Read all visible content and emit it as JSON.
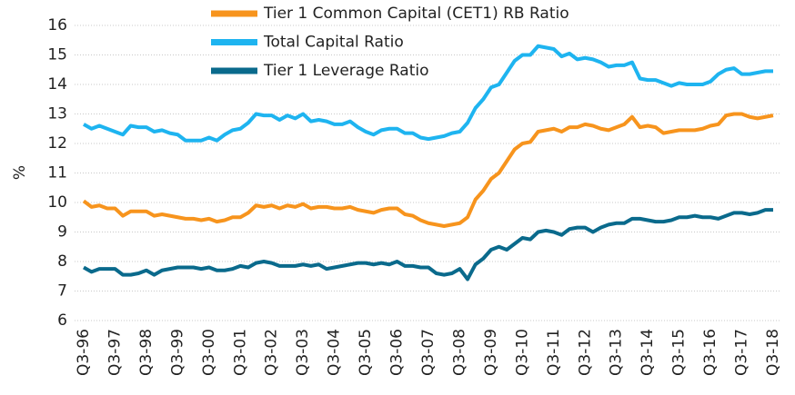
{
  "chart_data": {
    "type": "line",
    "ylabel": "%",
    "categories": [
      "Q3-96",
      null,
      null,
      null,
      "Q3-97",
      null,
      null,
      null,
      "Q3-98",
      null,
      null,
      null,
      "Q3-99",
      null,
      null,
      null,
      "Q3-00",
      null,
      null,
      null,
      "Q3-01",
      null,
      null,
      null,
      "Q3-02",
      null,
      null,
      null,
      "Q3-03",
      null,
      null,
      null,
      "Q3-04",
      null,
      null,
      null,
      "Q3-05",
      null,
      null,
      null,
      "Q3-06",
      null,
      null,
      null,
      "Q3-07",
      null,
      null,
      null,
      "Q3-08",
      null,
      null,
      null,
      "Q3-09",
      null,
      null,
      null,
      "Q3-10",
      null,
      null,
      null,
      "Q3-11",
      null,
      null,
      null,
      "Q3-12",
      null,
      null,
      null,
      "Q3-13",
      null,
      null,
      null,
      "Q3-14",
      null,
      null,
      null,
      "Q3-15",
      null,
      null,
      null,
      "Q3-16",
      null,
      null,
      null,
      "Q3-17",
      null,
      null,
      null,
      "Q3-18"
    ],
    "series": [
      {
        "name": "Tier 1 Common Capital (CET1) RB Ratio",
        "color": "#f7941d",
        "values": [
          10.05,
          9.85,
          9.9,
          9.8,
          9.8,
          9.55,
          9.7,
          9.7,
          9.7,
          9.55,
          9.6,
          9.55,
          9.5,
          9.45,
          9.45,
          9.4,
          9.45,
          9.35,
          9.4,
          9.5,
          9.5,
          9.65,
          9.9,
          9.85,
          9.9,
          9.8,
          9.9,
          9.85,
          9.95,
          9.8,
          9.85,
          9.85,
          9.8,
          9.8,
          9.85,
          9.75,
          9.7,
          9.65,
          9.75,
          9.8,
          9.8,
          9.6,
          9.55,
          9.4,
          9.3,
          9.25,
          9.2,
          9.25,
          9.3,
          9.5,
          10.1,
          10.4,
          10.8,
          11.0,
          11.4,
          11.8,
          12.0,
          12.05,
          12.4,
          12.45,
          12.5,
          12.4,
          12.55,
          12.55,
          12.65,
          12.6,
          12.5,
          12.45,
          12.55,
          12.65,
          12.9,
          12.55,
          12.6,
          12.55,
          12.35,
          12.4,
          12.45,
          12.45,
          12.45,
          12.5,
          12.6,
          12.65,
          12.95,
          13.0,
          13.0,
          12.9,
          12.85,
          12.9,
          12.95
        ]
      },
      {
        "name": "Total Capital Ratio",
        "color": "#1eb4f0",
        "values": [
          12.65,
          12.5,
          12.6,
          12.5,
          12.4,
          12.3,
          12.6,
          12.55,
          12.55,
          12.4,
          12.45,
          12.35,
          12.3,
          12.1,
          12.1,
          12.1,
          12.2,
          12.1,
          12.3,
          12.45,
          12.5,
          12.7,
          13.0,
          12.95,
          12.95,
          12.8,
          12.95,
          12.85,
          13.0,
          12.75,
          12.8,
          12.75,
          12.65,
          12.65,
          12.75,
          12.55,
          12.4,
          12.3,
          12.45,
          12.5,
          12.5,
          12.35,
          12.35,
          12.2,
          12.15,
          12.2,
          12.25,
          12.35,
          12.4,
          12.7,
          13.2,
          13.5,
          13.9,
          14.0,
          14.4,
          14.8,
          15.0,
          15.0,
          15.3,
          15.25,
          15.2,
          14.95,
          15.05,
          14.85,
          14.9,
          14.85,
          14.75,
          14.6,
          14.65,
          14.65,
          14.75,
          14.2,
          14.15,
          14.15,
          14.05,
          13.95,
          14.05,
          14.0,
          14.0,
          14.0,
          14.1,
          14.35,
          14.5,
          14.55,
          14.35,
          14.35,
          14.4,
          14.45,
          14.45
        ]
      },
      {
        "name": "Tier 1 Leverage Ratio",
        "color": "#0a6a8c",
        "values": [
          7.8,
          7.65,
          7.75,
          7.75,
          7.75,
          7.55,
          7.55,
          7.6,
          7.7,
          7.55,
          7.7,
          7.75,
          7.8,
          7.8,
          7.8,
          7.75,
          7.8,
          7.7,
          7.7,
          7.75,
          7.85,
          7.8,
          7.95,
          8.0,
          7.95,
          7.85,
          7.85,
          7.85,
          7.9,
          7.85,
          7.9,
          7.75,
          7.8,
          7.85,
          7.9,
          7.95,
          7.95,
          7.9,
          7.95,
          7.9,
          8.0,
          7.85,
          7.85,
          7.8,
          7.8,
          7.6,
          7.55,
          7.6,
          7.75,
          7.4,
          7.9,
          8.1,
          8.4,
          8.5,
          8.4,
          8.6,
          8.8,
          8.75,
          9.0,
          9.05,
          9.0,
          8.9,
          9.1,
          9.15,
          9.15,
          9.0,
          9.15,
          9.25,
          9.3,
          9.3,
          9.45,
          9.45,
          9.4,
          9.35,
          9.35,
          9.4,
          9.5,
          9.5,
          9.55,
          9.5,
          9.5,
          9.45,
          9.55,
          9.65,
          9.65,
          9.6,
          9.65,
          9.75,
          9.75
        ]
      }
    ],
    "ylim": [
      6,
      16
    ],
    "yticks": [
      6,
      7,
      8,
      9,
      10,
      11,
      12,
      13,
      14,
      15,
      16
    ],
    "grid": true
  }
}
